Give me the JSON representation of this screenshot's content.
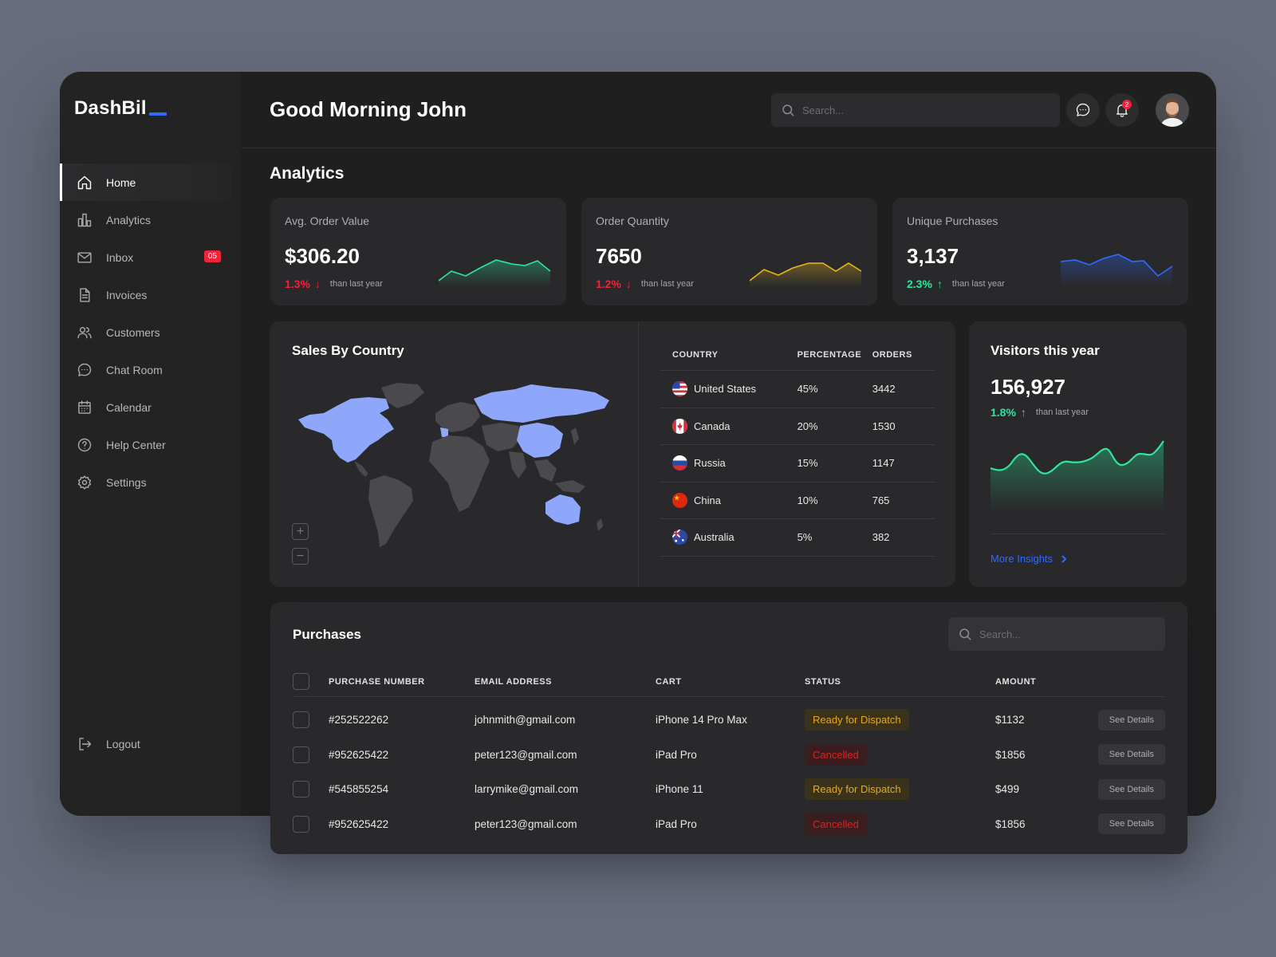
{
  "app": {
    "logo": "DashBil"
  },
  "sidebar": {
    "items": [
      {
        "label": "Home",
        "icon": "home-icon",
        "active": true
      },
      {
        "label": "Analytics",
        "icon": "bar-chart-icon"
      },
      {
        "label": "Inbox",
        "icon": "mail-icon",
        "badge": "05"
      },
      {
        "label": "Invoices",
        "icon": "document-icon"
      },
      {
        "label": "Customers",
        "icon": "users-icon"
      },
      {
        "label": "Chat Room",
        "icon": "chat-icon"
      },
      {
        "label": "Calendar",
        "icon": "calendar-icon"
      },
      {
        "label": "Help Center",
        "icon": "help-icon"
      },
      {
        "label": "Settings",
        "icon": "gear-icon"
      }
    ],
    "logout": "Logout"
  },
  "header": {
    "greeting": "Good Morning John",
    "search_placeholder": "Search...",
    "notification_count": "2"
  },
  "analytics": {
    "title": "Analytics",
    "kpis": [
      {
        "label": "Avg. Order Value",
        "value": "$306.20",
        "change": "1.3%",
        "direction": "down",
        "note": "than last year",
        "color": "#2ee59d"
      },
      {
        "label": "Order Quantity",
        "value": "7650",
        "change": "1.2%",
        "direction": "down",
        "note": "than last year",
        "color": "#e7b518"
      },
      {
        "label": "Unique Purchases",
        "value": "3,137",
        "change": "2.3%",
        "direction": "up",
        "note": "than last year",
        "color": "#2f6bff"
      }
    ]
  },
  "sales": {
    "title": "Sales By Country",
    "columns": [
      "COUNTRY",
      "PERCENTAGE",
      "ORDERS"
    ],
    "rows": [
      {
        "country": "United States",
        "percentage": "45%",
        "orders": "3442",
        "flag": "us-flag-icon"
      },
      {
        "country": "Canada",
        "percentage": "20%",
        "orders": "1530",
        "flag": "canada-flag-icon"
      },
      {
        "country": "Russia",
        "percentage": "15%",
        "orders": "1147",
        "flag": "russia-flag-icon"
      },
      {
        "country": "China",
        "percentage": "10%",
        "orders": "765",
        "flag": "china-flag-icon"
      },
      {
        "country": "Australia",
        "percentage": "5%",
        "orders": "382",
        "flag": "australia-flag-icon"
      }
    ],
    "map_highlight_color": "#8ea7fb",
    "zoom_in": "+",
    "zoom_out": "−"
  },
  "visitors": {
    "title": "Visitors this year",
    "value": "156,927",
    "change": "1.8%",
    "direction": "up",
    "note": "than last year",
    "link": "More Insights"
  },
  "purchases": {
    "title": "Purchases",
    "search_placeholder": "Search...",
    "columns": [
      "PURCHASE NUMBER",
      "EMAIL ADDRESS",
      "CART",
      "STATUS",
      "AMOUNT"
    ],
    "rows": [
      {
        "number": "#252522262",
        "email": "johnmith@gmail.com",
        "cart": "iPhone 14 Pro Max",
        "status": "Ready for Dispatch",
        "status_type": "ready",
        "amount": "$1132",
        "action": "See Details"
      },
      {
        "number": "#952625422",
        "email": "peter123@gmail.com",
        "cart": "iPad Pro",
        "status": "Cancelled",
        "status_type": "cancel",
        "amount": "$1856",
        "action": "See Details"
      },
      {
        "number": "#545855254",
        "email": "larrymike@gmail.com",
        "cart": "iPhone 11",
        "status": "Ready for Dispatch",
        "status_type": "ready",
        "amount": "$499",
        "action": "See Details"
      },
      {
        "number": "#952625422",
        "email": "peter123@gmail.com",
        "cart": "iPad Pro",
        "status": "Cancelled",
        "status_type": "cancel",
        "amount": "$1856",
        "action": "See Details"
      }
    ]
  }
}
